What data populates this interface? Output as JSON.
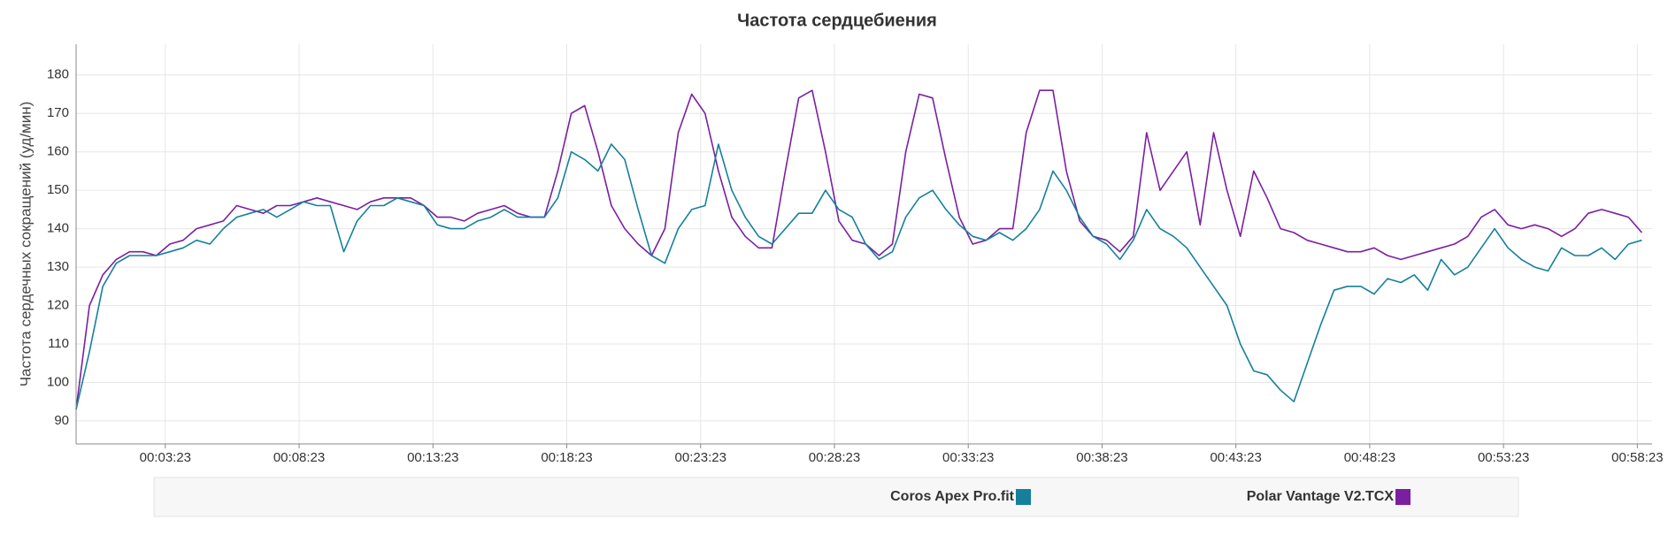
{
  "chart_data": {
    "type": "line",
    "title": "Частота сердцебиения",
    "y_label": "Частота сердечных сокращений (уд/мин)",
    "x": [
      3,
      33,
      63,
      93,
      123,
      153,
      183,
      213,
      243,
      273,
      303,
      333,
      363,
      393,
      423,
      453,
      483,
      513,
      543,
      573,
      603,
      633,
      663,
      693,
      723,
      753,
      783,
      813,
      843,
      873,
      903,
      933,
      963,
      993,
      1023,
      1053,
      1083,
      1113,
      1143,
      1173,
      1203,
      1233,
      1263,
      1293,
      1323,
      1353,
      1383,
      1413,
      1443,
      1473,
      1503,
      1533,
      1563,
      1593,
      1623,
      1653,
      1683,
      1713,
      1743,
      1773,
      1803,
      1833,
      1863,
      1893,
      1923,
      1953,
      1983,
      2013,
      2043,
      2073,
      2103,
      2133,
      2163,
      2193,
      2223,
      2253,
      2283,
      2313,
      2343,
      2373,
      2403,
      2433,
      2463,
      2493,
      2523,
      2553,
      2583,
      2613,
      2643,
      2673,
      2703,
      2733,
      2763,
      2793,
      2823,
      2853,
      2883,
      2913,
      2943,
      2973,
      3003,
      3033,
      3063,
      3093,
      3123,
      3153,
      3183,
      3213,
      3243,
      3273,
      3303,
      3333,
      3363,
      3393,
      3423,
      3453,
      3483,
      3513
    ],
    "series": [
      {
        "name": "Coros Apex Pro.fit",
        "color": "#15809b",
        "values": [
          93,
          108,
          125,
          131,
          133,
          133,
          133,
          134,
          135,
          137,
          136,
          140,
          143,
          144,
          145,
          143,
          145,
          147,
          146,
          146,
          134,
          142,
          146,
          146,
          148,
          147,
          146,
          141,
          140,
          140,
          142,
          143,
          145,
          143,
          143,
          143,
          148,
          160,
          158,
          155,
          162,
          158,
          145,
          133,
          131,
          140,
          145,
          146,
          162,
          150,
          143,
          138,
          136,
          140,
          144,
          144,
          150,
          145,
          143,
          136,
          132,
          134,
          143,
          148,
          150,
          145,
          141,
          138,
          137,
          139,
          137,
          140,
          145,
          155,
          150,
          143,
          138,
          136,
          132,
          137,
          145,
          140,
          138,
          135,
          130,
          125,
          120,
          110,
          103,
          102,
          98,
          95,
          105,
          115,
          124,
          125,
          125,
          123,
          127,
          126,
          128,
          124,
          132,
          128,
          130,
          135,
          140,
          135,
          132,
          130,
          129,
          135,
          133,
          133,
          135,
          132,
          136,
          137
        ]
      },
      {
        "name": "Polar Vantage V2.TCX",
        "color": "#7b1fa2",
        "values": [
          93,
          120,
          128,
          132,
          134,
          134,
          133,
          136,
          137,
          140,
          141,
          142,
          146,
          145,
          144,
          146,
          146,
          147,
          148,
          147,
          146,
          145,
          147,
          148,
          148,
          148,
          146,
          143,
          143,
          142,
          144,
          145,
          146,
          144,
          143,
          143,
          155,
          170,
          172,
          160,
          146,
          140,
          136,
          133,
          140,
          165,
          175,
          170,
          155,
          143,
          138,
          135,
          135,
          155,
          174,
          176,
          160,
          142,
          137,
          136,
          133,
          136,
          160,
          175,
          174,
          158,
          143,
          136,
          137,
          140,
          140,
          165,
          176,
          176,
          155,
          142,
          138,
          137,
          134,
          138,
          165,
          150,
          155,
          160,
          141,
          165,
          150,
          138,
          155,
          148,
          140,
          139,
          137,
          136,
          135,
          134,
          134,
          135,
          133,
          132,
          133,
          134,
          135,
          136,
          138,
          143,
          145,
          141,
          140,
          141,
          140,
          138,
          140,
          144,
          145,
          144,
          143,
          139
        ]
      }
    ],
    "xlim": [
      3,
      3536
    ],
    "xticks": [
      {
        "value": 203,
        "label": "00:03:23"
      },
      {
        "value": 503,
        "label": "00:08:23"
      },
      {
        "value": 803,
        "label": "00:13:23"
      },
      {
        "value": 1103,
        "label": "00:18:23"
      },
      {
        "value": 1403,
        "label": "00:23:23"
      },
      {
        "value": 1703,
        "label": "00:28:23"
      },
      {
        "value": 2003,
        "label": "00:33:23"
      },
      {
        "value": 2303,
        "label": "00:38:23"
      },
      {
        "value": 2603,
        "label": "00:43:23"
      },
      {
        "value": 2903,
        "label": "00:48:23"
      },
      {
        "value": 3203,
        "label": "00:53:23"
      },
      {
        "value": 3503,
        "label": "00:58:23"
      }
    ],
    "ylim": [
      84,
      188
    ],
    "yticks": [
      90,
      100,
      110,
      120,
      130,
      140,
      150,
      160,
      170,
      180
    ],
    "grid": true
  }
}
